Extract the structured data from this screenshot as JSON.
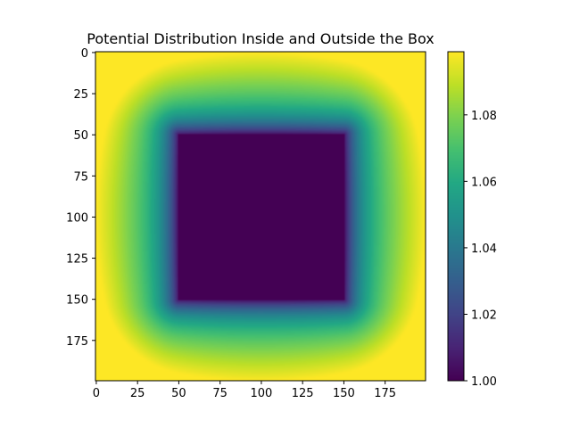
{
  "chart_data": {
    "type": "heatmap",
    "title": "Potential Distribution Inside and Outside the Box",
    "xlabel": "",
    "ylabel": "",
    "grid_size": [
      200,
      200
    ],
    "box": {
      "x_range": [
        50,
        150
      ],
      "y_range": [
        50,
        150
      ],
      "value": 1.0
    },
    "xlim": [
      0,
      199
    ],
    "ylim": [
      199,
      0
    ],
    "x_ticks": [
      "0",
      "25",
      "50",
      "75",
      "100",
      "125",
      "150",
      "175"
    ],
    "y_ticks": [
      "0",
      "25",
      "50",
      "75",
      "100",
      "125",
      "150",
      "175"
    ],
    "x_tick_values": [
      0,
      25,
      50,
      75,
      100,
      125,
      150,
      175
    ],
    "y_tick_values": [
      0,
      25,
      50,
      75,
      100,
      125,
      150,
      175
    ],
    "colorbar": {
      "colormap": "viridis",
      "min": 1.0,
      "max": 1.099,
      "ticks": [
        "1.00",
        "1.02",
        "1.04",
        "1.06",
        "1.08"
      ],
      "tick_values": [
        1.0,
        1.02,
        1.04,
        1.06,
        1.08
      ]
    },
    "colors": {
      "min": "#440154",
      "mid": "#21918c",
      "max": "#fde725"
    }
  }
}
